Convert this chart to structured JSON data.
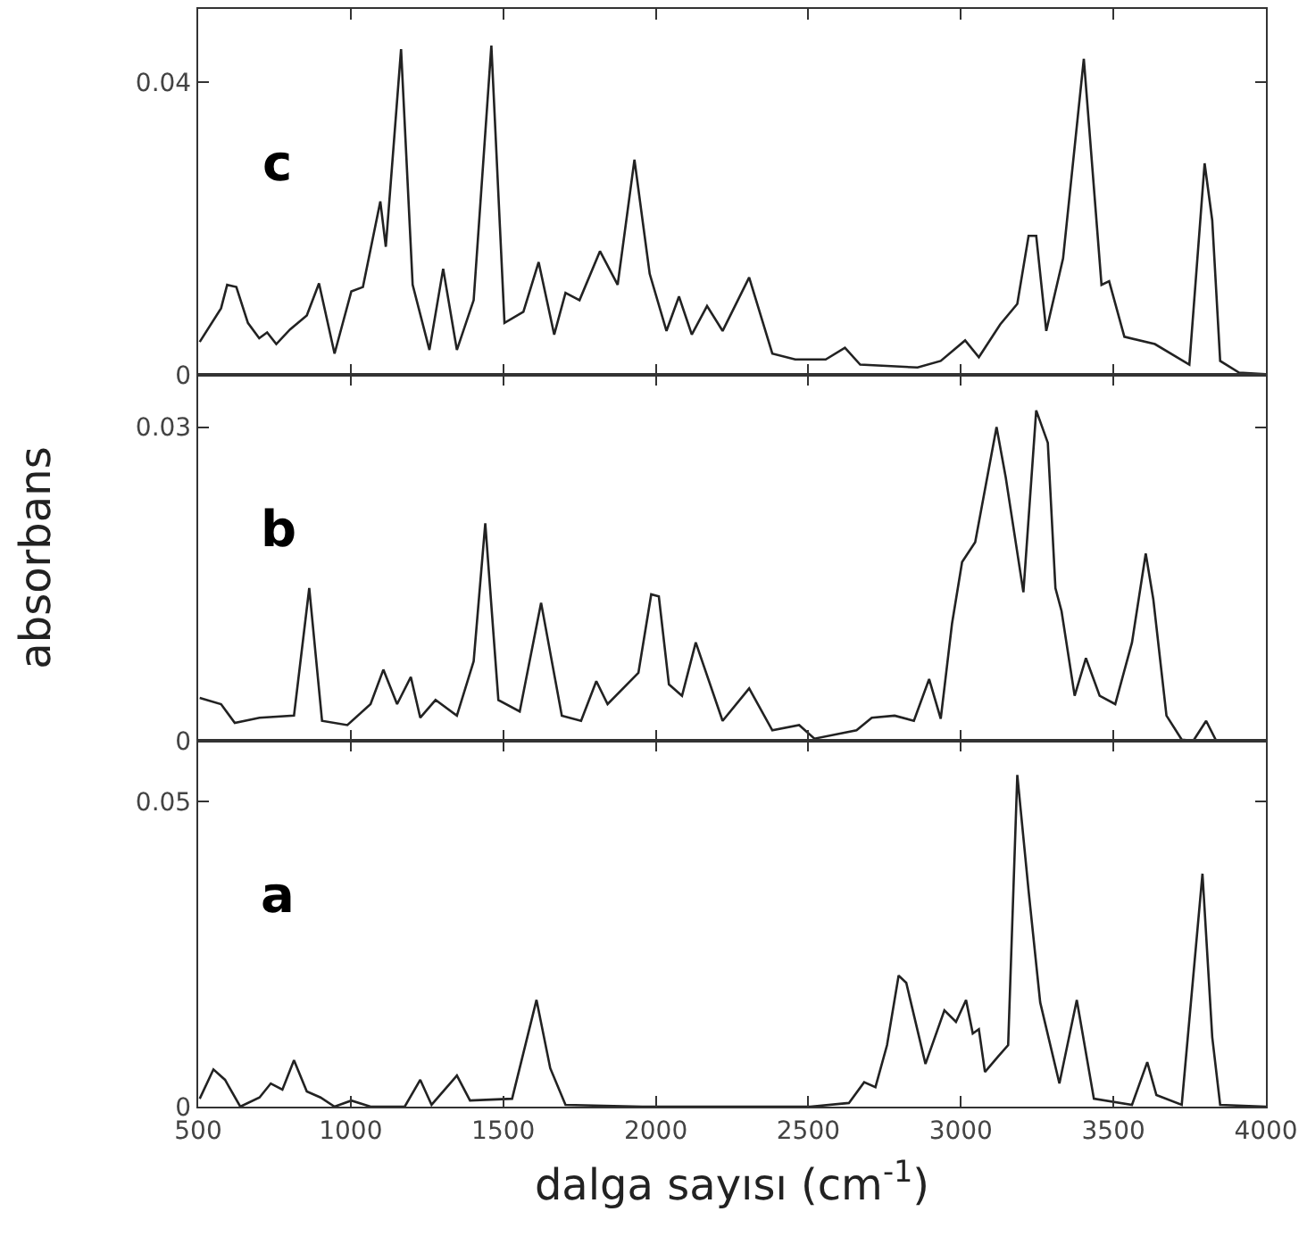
{
  "chart_data": [
    {
      "type": "line",
      "annotations": [
        "c"
      ],
      "xlim": [
        500,
        4000
      ],
      "xticks": [
        500,
        1000,
        1500,
        2000,
        2500,
        3000,
        3500,
        4000
      ],
      "ylim": [
        0,
        0.05
      ],
      "yticks": [
        0,
        0.04
      ],
      "tick_labels": "y",
      "color": "#222222",
      "x": [
        505,
        575,
        595,
        625,
        663,
        700,
        726,
        756,
        801,
        856,
        896,
        947,
        1002,
        1040,
        1097,
        1115,
        1165,
        1203,
        1258,
        1303,
        1348,
        1403,
        1461,
        1504,
        1566,
        1616,
        1667,
        1704,
        1750,
        1817,
        1875,
        1930,
        1980,
        2035,
        2076,
        2118,
        2168,
        2219,
        2306,
        2382,
        2457,
        2557,
        2620,
        2670,
        2858,
        2934,
        3014,
        3059,
        3129,
        3185,
        3222,
        3247,
        3280,
        3335,
        3403,
        3461,
        3486,
        3536,
        3636,
        3749,
        3799,
        3824,
        3850,
        3912,
        4000
      ],
      "values": [
        0.0045,
        0.0091,
        0.0123,
        0.012,
        0.0071,
        0.005,
        0.0058,
        0.0042,
        0.0062,
        0.0081,
        0.0125,
        0.0029,
        0.0114,
        0.012,
        0.0237,
        0.0175,
        0.0445,
        0.0123,
        0.0034,
        0.0145,
        0.0034,
        0.0102,
        0.045,
        0.0071,
        0.0086,
        0.0154,
        0.0055,
        0.0112,
        0.0102,
        0.0169,
        0.0123,
        0.0294,
        0.0138,
        0.006,
        0.0107,
        0.0055,
        0.0094,
        0.006,
        0.0133,
        0.0029,
        0.0021,
        0.0021,
        0.0037,
        0.0014,
        0.001,
        0.0019,
        0.0047,
        0.0024,
        0.0069,
        0.0097,
        0.019,
        0.019,
        0.006,
        0.0159,
        0.0432,
        0.0123,
        0.0128,
        0.0052,
        0.0042,
        0.0014,
        0.0289,
        0.0211,
        0.0019,
        0.0003,
        0.0001
      ]
    },
    {
      "type": "line",
      "annotations": [
        "b"
      ],
      "ylabel": "absorbans",
      "xlim": [
        500,
        4000
      ],
      "xticks": [
        500,
        1000,
        1500,
        2000,
        2500,
        3000,
        3500,
        4000
      ],
      "ylim": [
        0,
        0.035
      ],
      "yticks": [
        0,
        0.03
      ],
      "tick_labels": "y",
      "color": "#222222",
      "x": [
        505,
        575,
        620,
        701,
        814,
        864,
        906,
        989,
        1065,
        1107,
        1152,
        1197,
        1228,
        1278,
        1348,
        1403,
        1441,
        1484,
        1554,
        1624,
        1692,
        1755,
        1805,
        1842,
        1943,
        1985,
        2010,
        2043,
        2086,
        2131,
        2219,
        2306,
        2382,
        2470,
        2520,
        2658,
        2708,
        2783,
        2846,
        2896,
        2934,
        2971,
        3004,
        3047,
        3117,
        3147,
        3205,
        3247,
        3285,
        3310,
        3330,
        3373,
        3410,
        3455,
        3506,
        3561,
        3606,
        3631,
        3674,
        3724,
        3762,
        3804,
        3837,
        4000
      ],
      "values": [
        0.0041,
        0.0035,
        0.0017,
        0.0022,
        0.0024,
        0.0146,
        0.0019,
        0.0015,
        0.0035,
        0.0068,
        0.0035,
        0.0061,
        0.0022,
        0.0039,
        0.0024,
        0.0076,
        0.0208,
        0.0039,
        0.0028,
        0.0132,
        0.0024,
        0.0019,
        0.0057,
        0.0035,
        0.0065,
        0.014,
        0.0138,
        0.0054,
        0.0043,
        0.0094,
        0.0019,
        0.005,
        0.001,
        0.0015,
        0.0002,
        0.001,
        0.0022,
        0.0024,
        0.0019,
        0.0059,
        0.0021,
        0.0112,
        0.0171,
        0.019,
        0.03,
        0.0252,
        0.0142,
        0.0316,
        0.0285,
        0.0146,
        0.0124,
        0.0043,
        0.0079,
        0.0043,
        0.0035,
        0.0094,
        0.0179,
        0.0135,
        0.0024,
        0.0001,
        0,
        0.0019,
        0,
        0
      ]
    },
    {
      "type": "line",
      "annotations": [
        "a"
      ],
      "xlabel": "dalga sayısı (cm$^{-1}$)",
      "xlim": [
        500,
        4000
      ],
      "xticks": [
        500,
        1000,
        1500,
        2000,
        2500,
        3000,
        3500,
        4000
      ],
      "ylim": [
        0,
        0.06
      ],
      "yticks": [
        0,
        0.05
      ],
      "color": "#222222",
      "x": [
        505,
        550,
        588,
        638,
        701,
        738,
        776,
        814,
        856,
        901,
        947,
        1002,
        1065,
        1177,
        1228,
        1265,
        1348,
        1391,
        1529,
        1609,
        1654,
        1704,
        1955,
        2507,
        2633,
        2683,
        2720,
        2758,
        2796,
        2821,
        2884,
        2946,
        2984,
        3017,
        3039,
        3059,
        3079,
        3122,
        3155,
        3185,
        3222,
        3260,
        3323,
        3380,
        3436,
        3561,
        3611,
        3641,
        3724,
        3792,
        3824,
        3850,
        4000
      ],
      "values": [
        0.0013,
        0.0061,
        0.0044,
        0,
        0.0015,
        0.0038,
        0.0028,
        0.0076,
        0.0025,
        0.0015,
        0,
        0.001,
        0,
        0,
        0.0044,
        0.0003,
        0.0051,
        0.001,
        0.0013,
        0.0175,
        0.0063,
        0.0003,
        0,
        0,
        0.0006,
        0.004,
        0.0032,
        0.0101,
        0.0215,
        0.0203,
        0.007,
        0.0158,
        0.0139,
        0.0175,
        0.012,
        0.0127,
        0.0057,
        0.0082,
        0.0101,
        0.0544,
        0.0354,
        0.0171,
        0.0038,
        0.0175,
        0.0013,
        0.0003,
        0.0073,
        0.0019,
        0.0003,
        0.0382,
        0.0114,
        0.0003,
        0
      ]
    }
  ]
}
